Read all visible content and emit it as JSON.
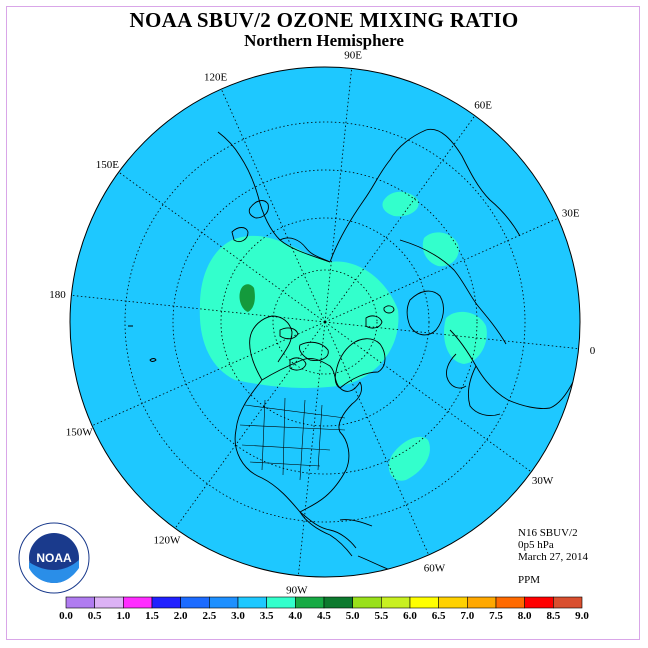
{
  "title": "NOAA SBUV/2 OZONE MIXING RATIO",
  "subtitle": "Northern Hemisphere",
  "longitude_labels": {
    "e90": "90E",
    "e60": "60E",
    "e30": "30E",
    "zero": "0",
    "w30": "30W",
    "w60": "60W",
    "w90": "90W",
    "w120": "120W",
    "w150": "150W",
    "e180": "180",
    "e150": "150E",
    "e120": "120E"
  },
  "info": {
    "instrument": "N16 SBUV/2",
    "level": "0p5 hPa",
    "date": "March 27, 2014",
    "units": "PPM"
  },
  "logo": {
    "text": "NOAA"
  },
  "colors": {
    "background_field": "#1ec8ff",
    "band_3_5_4_0": "#33ffcc",
    "band_4_5_5_0": "#149a3c",
    "land_outline": "#000000"
  },
  "colorbar": {
    "ticks": [
      "0.0",
      "0.5",
      "1.0",
      "1.5",
      "2.0",
      "2.5",
      "3.0",
      "3.5",
      "4.0",
      "4.5",
      "5.0",
      "5.5",
      "6.0",
      "6.5",
      "7.0",
      "7.5",
      "8.0",
      "8.5",
      "9.0"
    ],
    "colors": [
      "#b07cf0",
      "#dcb2f5",
      "#ff2cff",
      "#2020ff",
      "#1c6bff",
      "#1e90ff",
      "#1ec8ff",
      "#33ffcc",
      "#17aa44",
      "#0d7a2e",
      "#99e01a",
      "#c8f020",
      "#ffff00",
      "#ffd100",
      "#ffa800",
      "#ff6a00",
      "#ff0000",
      "#d94f2f",
      "#8b5a3a"
    ]
  }
}
